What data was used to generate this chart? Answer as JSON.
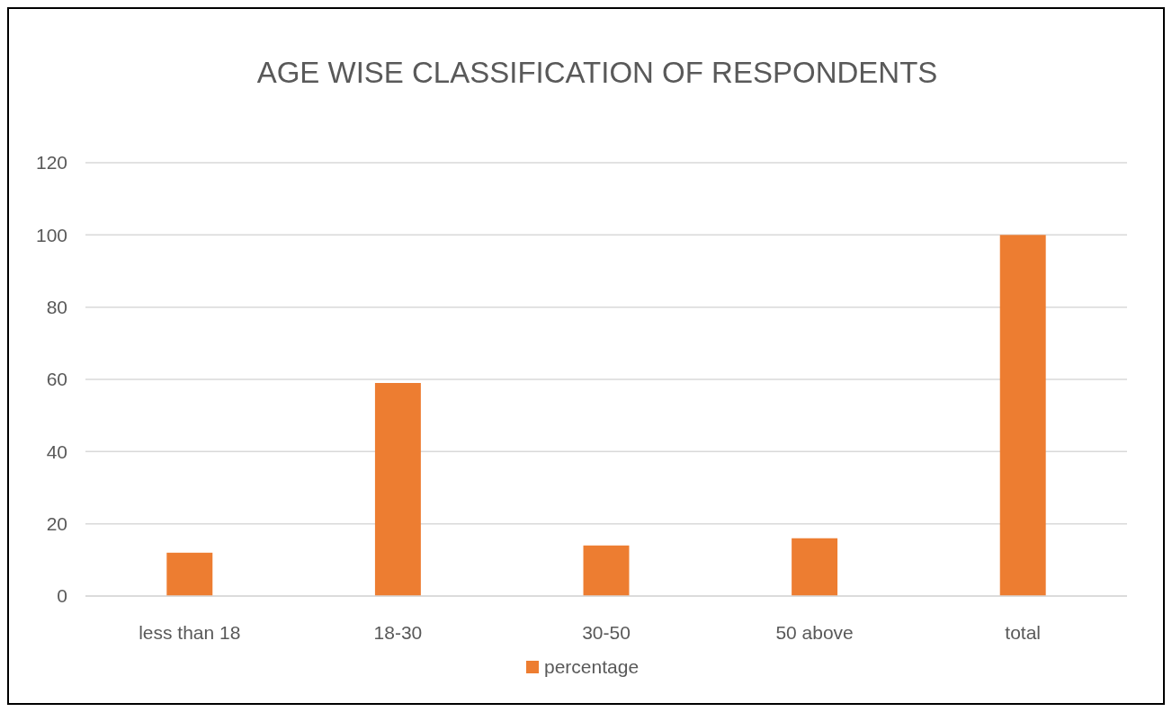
{
  "chart_data": {
    "type": "bar",
    "title": "AGE WISE CLASSIFICATION  OF RESPONDENTS",
    "categories": [
      "less than 18",
      "18-30",
      "30-50",
      "50 above",
      "total"
    ],
    "series": [
      {
        "name": "percentage",
        "color": "#ed7d31",
        "values": [
          12,
          59,
          14,
          16,
          100
        ]
      }
    ],
    "ylim": [
      0,
      120
    ],
    "yticks": [
      0,
      20,
      40,
      60,
      80,
      100,
      120
    ],
    "grid": "y",
    "legend": "bottom"
  }
}
